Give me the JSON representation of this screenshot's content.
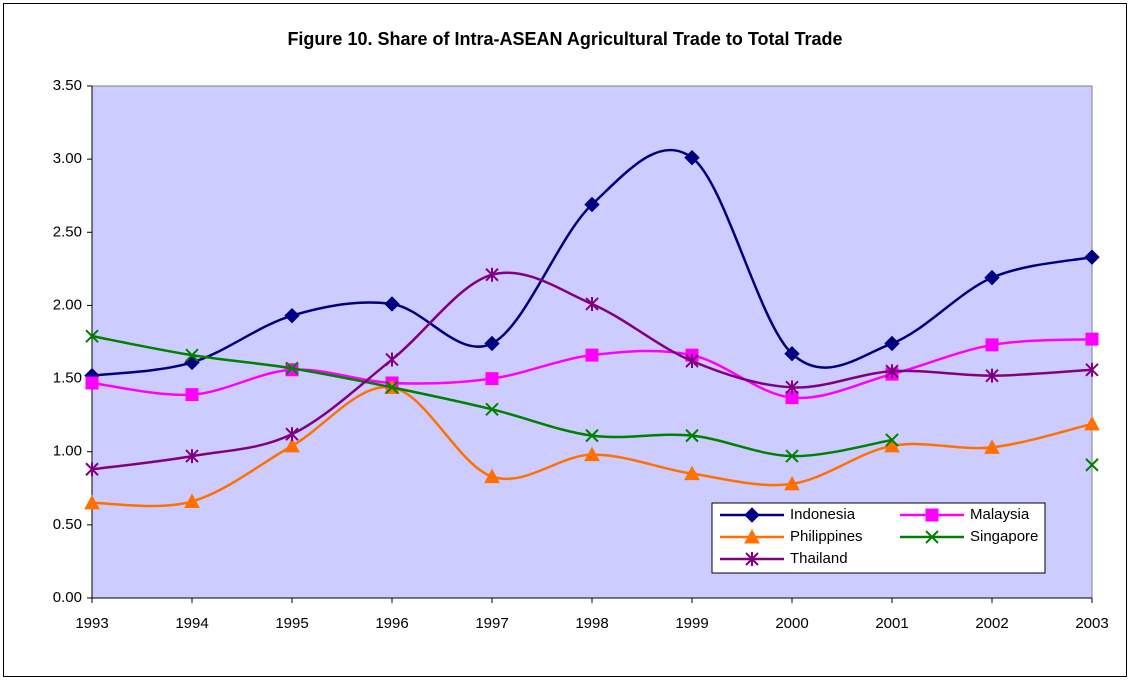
{
  "chart_data": {
    "type": "line",
    "title": "Figure 10. Share of Intra-ASEAN Agricultural Trade to Total Trade",
    "categories": [
      "1993",
      "1994",
      "1995",
      "1996",
      "1997",
      "1998",
      "1999",
      "2000",
      "2001",
      "2002",
      "2003"
    ],
    "series": [
      {
        "name": "Indonesia",
        "color": "#000080",
        "marker": "diamond",
        "values": [
          1.52,
          1.61,
          1.93,
          2.01,
          1.74,
          2.69,
          3.01,
          1.67,
          1.74,
          2.19,
          2.33
        ]
      },
      {
        "name": "Malaysia",
        "color": "#ff00ff",
        "marker": "square",
        "values": [
          1.47,
          1.39,
          1.56,
          1.47,
          1.5,
          1.66,
          1.66,
          1.37,
          1.53,
          1.73,
          1.77
        ]
      },
      {
        "name": "Philippines",
        "color": "#ff7000",
        "marker": "triangle",
        "values": [
          0.65,
          0.66,
          1.04,
          1.44,
          0.83,
          0.98,
          0.85,
          0.78,
          1.04,
          1.03,
          1.19
        ]
      },
      {
        "name": "Singapore",
        "color": "#008000",
        "marker": "x",
        "values": [
          1.79,
          1.66,
          1.57,
          1.44,
          1.29,
          1.11,
          1.11,
          0.97,
          1.08,
          null,
          0.91
        ]
      },
      {
        "name": "Thailand",
        "color": "#800080",
        "marker": "asterisk",
        "values": [
          0.88,
          0.97,
          1.12,
          1.63,
          2.21,
          2.01,
          1.62,
          1.44,
          1.55,
          1.52,
          1.56
        ]
      }
    ],
    "ylim": [
      0,
      3.5
    ],
    "yticks": [
      {
        "value": 0,
        "label": "0.00"
      },
      {
        "value": 0.5,
        "label": "0.50"
      },
      {
        "value": 1,
        "label": "1.00"
      },
      {
        "value": 1.5,
        "label": "1.50"
      },
      {
        "value": 2,
        "label": "2.00"
      },
      {
        "value": 2.5,
        "label": "2.50"
      },
      {
        "value": 3,
        "label": "3.00"
      },
      {
        "value": 3.5,
        "label": "3.50"
      }
    ],
    "smooth": true,
    "legend": "lower right"
  }
}
